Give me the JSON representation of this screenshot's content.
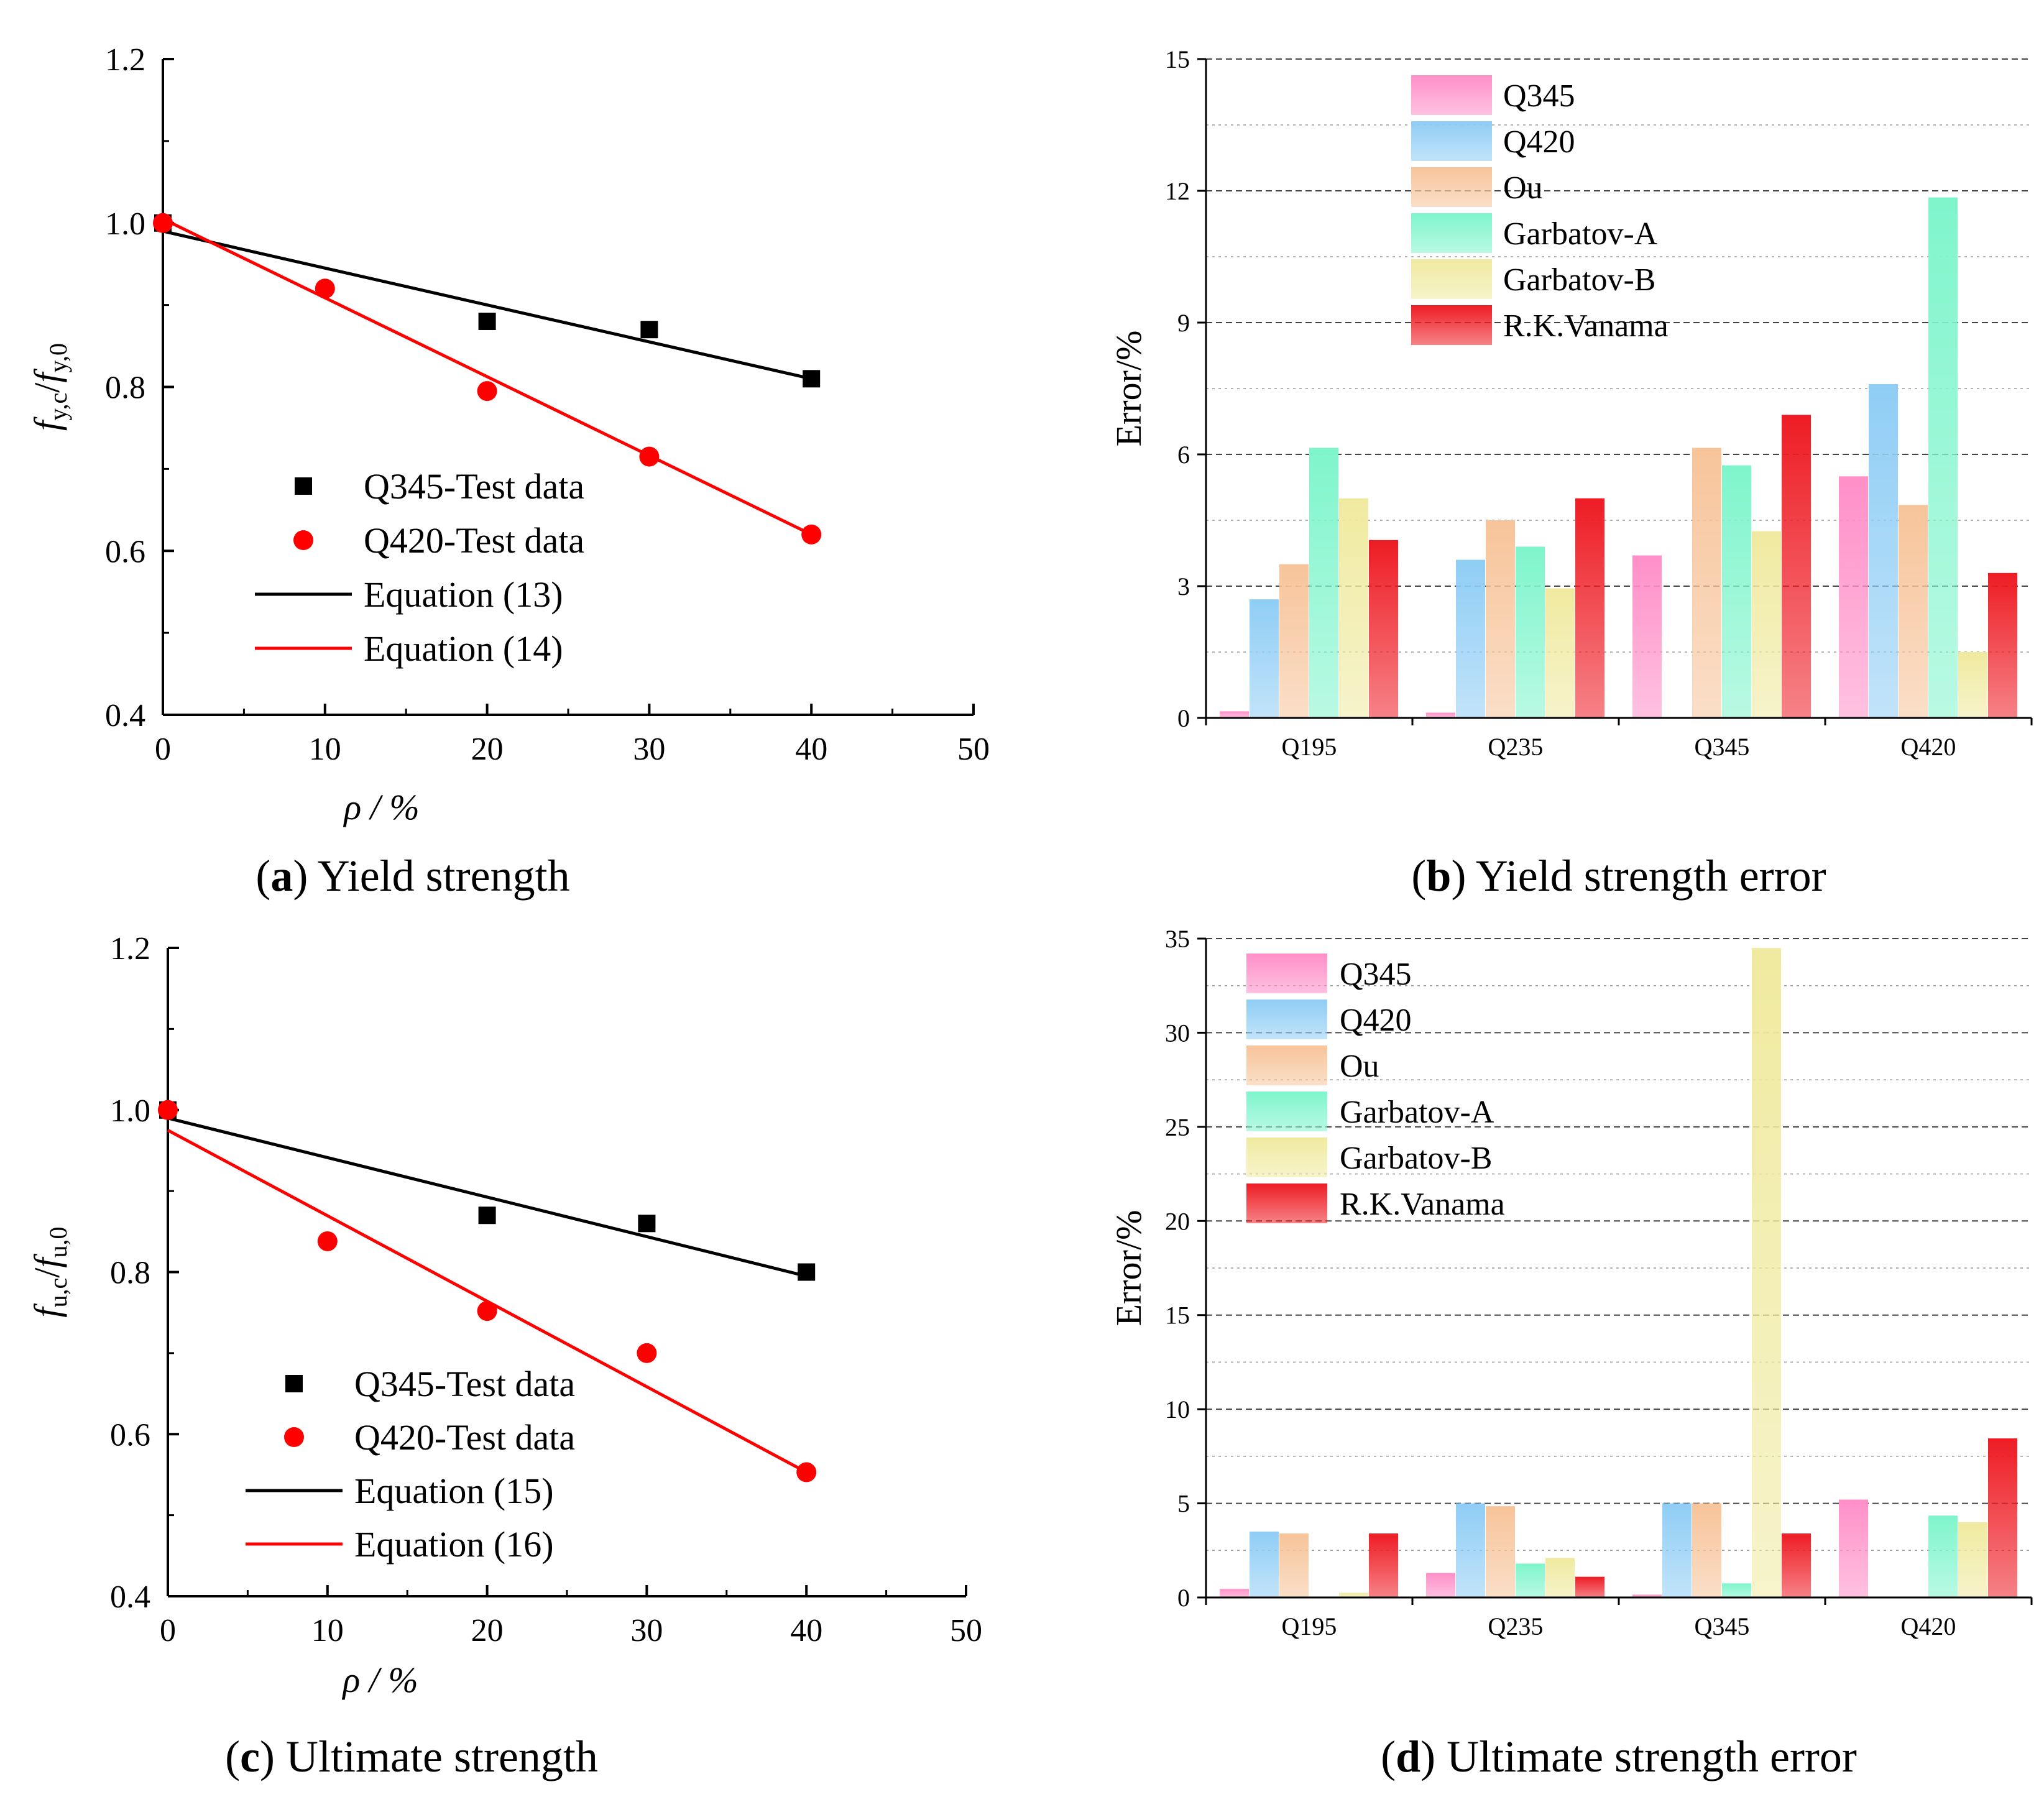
{
  "chart_data": [
    {
      "id": "a",
      "type": "scatter",
      "caption_letter": "a",
      "caption_text": " Yield strength",
      "xlabel": "ρ / %",
      "ylabel": "fy,c/fy,0",
      "ylabel_parts": [
        "f",
        "y,c",
        "/",
        "f",
        "y,0"
      ],
      "xlim": [
        0,
        50
      ],
      "ylim": [
        0.4,
        1.2
      ],
      "xticks": [
        "0",
        "10",
        "20",
        "30",
        "40",
        "50"
      ],
      "yticks": [
        "0.4",
        "0.6",
        "0.8",
        "1.0",
        "1.2"
      ],
      "series": [
        {
          "name": "Q345-Test data",
          "marker": "square",
          "color": "#000000",
          "x": [
            0,
            20,
            30,
            40
          ],
          "y": [
            1.0,
            0.88,
            0.87,
            0.81
          ]
        },
        {
          "name": "Q420-Test data",
          "marker": "circle",
          "color": "#ff0000",
          "x": [
            0,
            10,
            20,
            30,
            40
          ],
          "y": [
            1.0,
            0.92,
            0.795,
            0.715,
            0.62
          ]
        }
      ],
      "lines": [
        {
          "name": "Equation (13)",
          "color": "#000000",
          "x": [
            0,
            40
          ],
          "y": [
            0.99,
            0.81
          ]
        },
        {
          "name": "Equation (14)",
          "color": "#ff0000",
          "x": [
            0,
            40
          ],
          "y": [
            1.005,
            0.62
          ]
        }
      ]
    },
    {
      "id": "b",
      "type": "bar",
      "caption_letter": "b",
      "caption_text": " Yield strength error",
      "ylabel": "Error/%",
      "xlabel": "",
      "ylim": [
        0,
        15
      ],
      "yticks": [
        "0",
        "3",
        "6",
        "9",
        "12",
        "15"
      ],
      "categories": [
        "Q195",
        "Q235",
        "Q345",
        "Q420"
      ],
      "series": [
        {
          "name": "Q345",
          "color": "#ff8fc8",
          "values": [
            0.15,
            0.12,
            3.7,
            5.5
          ]
        },
        {
          "name": "Q420",
          "color": "#8fcdf5",
          "values": [
            2.7,
            3.6,
            0,
            7.6
          ]
        },
        {
          "name": "Ou",
          "color": "#f7c49a",
          "values": [
            3.5,
            4.5,
            6.15,
            4.85
          ]
        },
        {
          "name": "Garbatov-A",
          "color": "#7ff5cc",
          "values": [
            6.15,
            3.9,
            5.75,
            11.85
          ]
        },
        {
          "name": "Garbatov-B",
          "color": "#f0eaa0",
          "values": [
            5.0,
            2.95,
            4.25,
            1.5
          ]
        },
        {
          "name": "R.K.Vanama",
          "color": "#ee1c24",
          "values": [
            4.05,
            5.0,
            6.9,
            3.3
          ]
        }
      ]
    },
    {
      "id": "c",
      "type": "scatter",
      "caption_letter": "c",
      "caption_text": " Ultimate strength",
      "xlabel": "ρ / %",
      "ylabel": "fu,c/fu,0",
      "ylabel_parts": [
        "f",
        "u,c",
        "/",
        "f",
        "u,0"
      ],
      "xlim": [
        0,
        50
      ],
      "ylim": [
        0.4,
        1.2
      ],
      "xticks": [
        "0",
        "10",
        "20",
        "30",
        "40",
        "50"
      ],
      "yticks": [
        "0.4",
        "0.6",
        "0.8",
        "1.0",
        "1.2"
      ],
      "series": [
        {
          "name": "Q345-Test data",
          "marker": "square",
          "color": "#000000",
          "x": [
            0,
            20,
            30,
            40
          ],
          "y": [
            1.0,
            0.87,
            0.86,
            0.8
          ]
        },
        {
          "name": "Q420-Test data",
          "marker": "circle",
          "color": "#ff0000",
          "x": [
            0,
            10,
            20,
            30,
            40
          ],
          "y": [
            1.0,
            0.838,
            0.752,
            0.7,
            0.553
          ]
        }
      ],
      "lines": [
        {
          "name": "Equation (15)",
          "color": "#000000",
          "x": [
            0,
            40
          ],
          "y": [
            0.99,
            0.795
          ]
        },
        {
          "name": "Equation (16)",
          "color": "#ff0000",
          "x": [
            0,
            40
          ],
          "y": [
            0.975,
            0.553
          ]
        }
      ]
    },
    {
      "id": "d",
      "type": "bar",
      "caption_letter": "d",
      "caption_text": " Ultimate strength error",
      "ylabel": "Error/%",
      "xlabel": "",
      "ylim": [
        0,
        35
      ],
      "yticks": [
        "0",
        "5",
        "10",
        "15",
        "20",
        "25",
        "30",
        "35"
      ],
      "categories": [
        "Q195",
        "Q235",
        "Q345",
        "Q420"
      ],
      "series": [
        {
          "name": "Q345",
          "color": "#ff8fc8",
          "values": [
            0.45,
            1.3,
            0.15,
            5.2
          ]
        },
        {
          "name": "Q420",
          "color": "#8fcdf5",
          "values": [
            3.5,
            5.0,
            5.0,
            0
          ]
        },
        {
          "name": "Ou",
          "color": "#f7c49a",
          "values": [
            3.4,
            4.85,
            5.0,
            0
          ]
        },
        {
          "name": "Garbatov-A",
          "color": "#7ff5cc",
          "values": [
            0.05,
            1.8,
            0.75,
            4.35
          ]
        },
        {
          "name": "Garbatov-B",
          "color": "#f0eaa0",
          "values": [
            0.25,
            2.1,
            34.5,
            4.0
          ]
        },
        {
          "name": "R.K.Vanama",
          "color": "#ee1c24",
          "values": [
            3.4,
            1.1,
            3.4,
            8.45
          ]
        }
      ]
    }
  ]
}
